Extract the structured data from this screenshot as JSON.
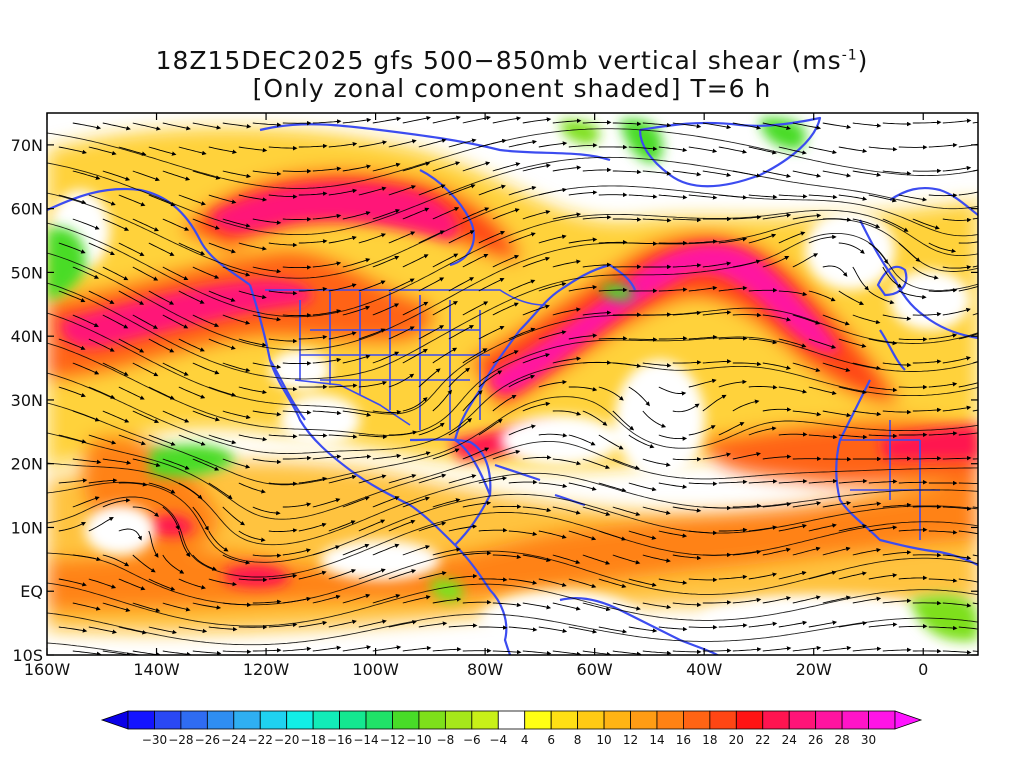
{
  "title": {
    "line1_main": "18Z15DEC2025 gfs 500−850mb vertical shear (ms",
    "line1_sup": "-1",
    "line1_end": ")",
    "line2": "[Only zonal component shaded] T=6 h"
  },
  "axes": {
    "x_ticks": [
      "160W",
      "140W",
      "120W",
      "100W",
      "80W",
      "60W",
      "40W",
      "20W",
      "0"
    ],
    "y_ticks": [
      "70N",
      "60N",
      "50N",
      "40N",
      "30N",
      "20N",
      "10N",
      "EQ",
      "10S"
    ],
    "lon_range": [
      -160,
      10
    ],
    "lat_range": [
      -10,
      75
    ]
  },
  "colorbar": {
    "labels": [
      "−30",
      "−28",
      "−26",
      "−24",
      "−22",
      "−20",
      "−18",
      "−16",
      "−14",
      "−12",
      "−10",
      "−8",
      "−6",
      "−4",
      "4",
      "6",
      "8",
      "10",
      "12",
      "14",
      "16",
      "18",
      "20",
      "22",
      "24",
      "26",
      "28",
      "30"
    ],
    "colors": [
      "#1414ff",
      "#2a48f4",
      "#2f6cf2",
      "#2f8ef2",
      "#2faff2",
      "#1fd2f0",
      "#12eee6",
      "#12ecb8",
      "#14e890",
      "#20e268",
      "#48dc28",
      "#7ee01a",
      "#a6e81a",
      "#c8f018",
      "#ffffff",
      "#ffff14",
      "#ffe014",
      "#ffca14",
      "#ffb414",
      "#ff9c14",
      "#ff8214",
      "#ff6414",
      "#ff4614",
      "#ff1414",
      "#ff1450",
      "#ff1478",
      "#ff14a0",
      "#ff14c8",
      "#ff14e6"
    ],
    "low_arrow_color": "#0a00e8",
    "high_arrow_color": "#ff14ff"
  },
  "colors": {
    "coastline": "#3c4cf0",
    "streamline": "#000000",
    "frame": "#000000"
  }
}
